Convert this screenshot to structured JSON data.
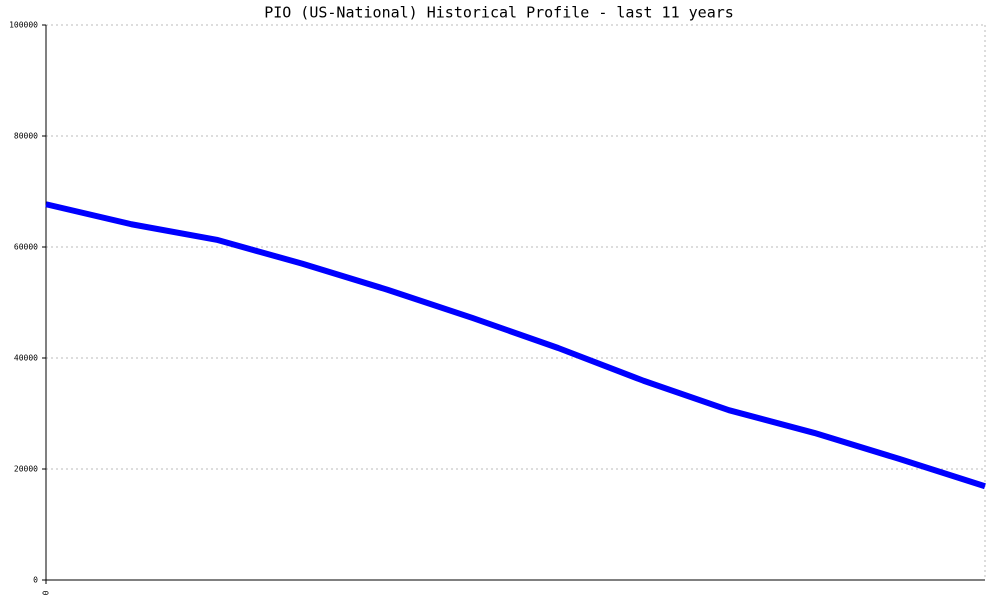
{
  "chart_data": {
    "type": "line",
    "title": "PIO (US-National) Historical Profile - last 11 years",
    "x": [
      0,
      1,
      2,
      3,
      4,
      5,
      6,
      7,
      8,
      9,
      10,
      11
    ],
    "series": [
      {
        "color": "#0000ff",
        "values": [
          67700,
          64100,
          61300,
          57000,
          52300,
          47200,
          41800,
          35900,
          30600,
          26500,
          21800,
          16900
        ]
      }
    ],
    "xlim": [
      0,
      11
    ],
    "xticks": [
      0
    ],
    "ylim": [
      0,
      100000
    ],
    "yticks": [
      0,
      20000,
      40000,
      60000,
      80000,
      100000
    ],
    "grid": true
  }
}
